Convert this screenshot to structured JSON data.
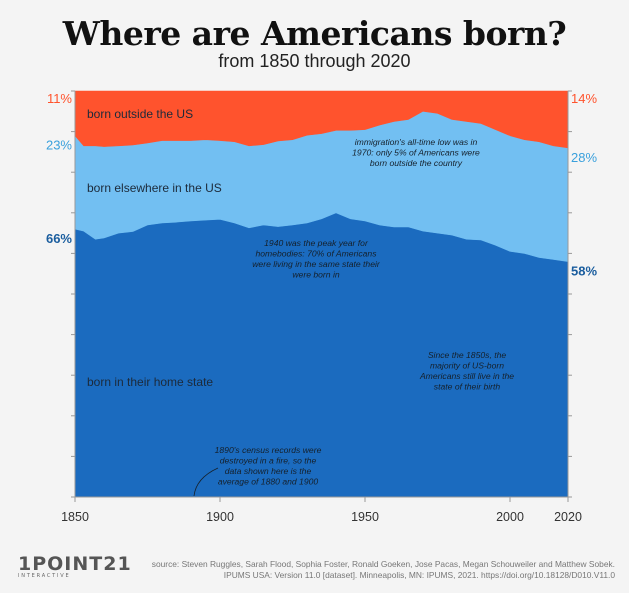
{
  "title": "Where are Americans born?",
  "subtitle": "from 1850 through 2020",
  "chart_data": {
    "type": "area",
    "stacked": "percent",
    "xlim": [
      1850,
      2020
    ],
    "ylim": [
      0,
      100
    ],
    "x_ticks": [
      "1850",
      "1900",
      "1950",
      "2000",
      "2020"
    ],
    "grid": false,
    "x": [
      1850,
      1853,
      1857,
      1860,
      1865,
      1870,
      1875,
      1880,
      1885,
      1890,
      1895,
      1900,
      1905,
      1910,
      1915,
      1920,
      1925,
      1930,
      1935,
      1940,
      1945,
      1950,
      1955,
      1960,
      1965,
      1970,
      1975,
      1980,
      1985,
      1990,
      1995,
      2000,
      2005,
      2010,
      2015,
      2020
    ],
    "series": [
      {
        "name": "born in their home state",
        "color": "#1b6bbf",
        "values": [
          66,
          65.5,
          63.5,
          63.8,
          65,
          65.4,
          67,
          67.5,
          67.7,
          68,
          68.2,
          68.4,
          67.5,
          66.3,
          67,
          66.6,
          67,
          67.5,
          68.5,
          70,
          68.5,
          68,
          67,
          66.5,
          66.5,
          65.5,
          65,
          64.5,
          63.5,
          63.3,
          62,
          60.5,
          60,
          59,
          58.5,
          58
        ]
      },
      {
        "name": "born elsewhere in the US",
        "color": "#72bff2",
        "values": [
          23,
          21,
          23,
          22.5,
          21.5,
          21.3,
          20.2,
          20.3,
          20.1,
          19.8,
          19.8,
          19.4,
          20,
          20.2,
          19.8,
          21.1,
          21,
          21.6,
          21,
          20.3,
          21.8,
          22.5,
          24.6,
          26,
          26.5,
          29.5,
          29.5,
          28.5,
          29,
          28.7,
          28.5,
          28.5,
          28,
          28.5,
          28,
          28
        ]
      },
      {
        "name": "born outside the US",
        "color": "#ff532d",
        "values": [
          11,
          13.5,
          13.5,
          13.7,
          13.5,
          13.3,
          12.8,
          12.2,
          12.2,
          12.2,
          12,
          12.2,
          12.5,
          13.5,
          13.2,
          12.3,
          12,
          10.9,
          10.5,
          9.7,
          9.7,
          9.5,
          8.4,
          7.5,
          7,
          5,
          5.5,
          7,
          7.5,
          8,
          9.5,
          11,
          12,
          12.5,
          13.5,
          14
        ]
      }
    ],
    "labels_left": [
      "11%",
      "23%",
      "66%"
    ],
    "labels_right": [
      "14%",
      "28%",
      "58%"
    ],
    "annotations": [
      {
        "id": "immigration",
        "lines": [
          "immigration's all-time low was in",
          "1970: only 5% of Americans were",
          "born outside the country"
        ]
      },
      {
        "id": "homebodies",
        "lines": [
          "1940 was the peak year for",
          "homebodies: 70% of Americans",
          "were living in the same state their",
          "were born in"
        ]
      },
      {
        "id": "majority",
        "lines": [
          "Since the 1850s, the",
          "majority of US-born",
          "Americans still live in the",
          "state of their birth"
        ]
      },
      {
        "id": "census",
        "lines": [
          "1890's census records were",
          "destroyed in a fire, so the",
          "data shown here is the",
          "average of 1880 and 1900"
        ]
      }
    ]
  },
  "footer": {
    "brand": "1POINT21",
    "brand_sub": "INTERACTIVE",
    "source_line1": "source: Steven Ruggles, Sarah Flood, Sophia Foster, Ronald Goeken,  Jose Pacas, Megan Schouweiler and Matthew Sobek.",
    "source_line2": "IPUMS USA: Version 11.0 [dataset]. Minneapolis, MN: IPUMS, 2021. https://doi.org/10.18128/D010.V11.0"
  }
}
